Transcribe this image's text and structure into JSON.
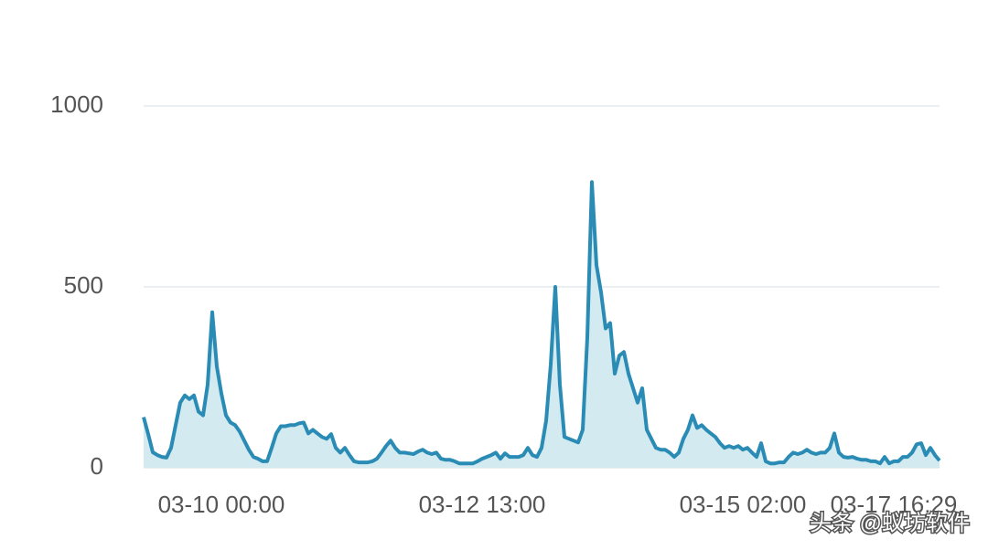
{
  "chart_data": {
    "type": "area",
    "categories": [
      null,
      null,
      null,
      null,
      null,
      null,
      null,
      null,
      null,
      null,
      null,
      null,
      null,
      null,
      null,
      null,
      null,
      "03-10 00:00",
      null,
      null,
      null,
      null,
      null,
      null,
      null,
      null,
      null,
      null,
      null,
      null,
      null,
      null,
      null,
      null,
      null,
      null,
      null,
      null,
      null,
      null,
      null,
      null,
      null,
      null,
      null,
      null,
      null,
      null,
      null,
      null,
      null,
      null,
      null,
      null,
      null,
      null,
      null,
      null,
      null,
      null,
      null,
      null,
      null,
      null,
      null,
      null,
      null,
      null,
      null,
      null,
      null,
      null,
      null,
      null,
      "03-12 13:00",
      null,
      null,
      null,
      null,
      null,
      null,
      null,
      null,
      null,
      null,
      null,
      null,
      null,
      null,
      null,
      null,
      null,
      null,
      null,
      null,
      null,
      null,
      null,
      null,
      null,
      null,
      null,
      null,
      null,
      null,
      null,
      null,
      null,
      null,
      null,
      null,
      null,
      null,
      null,
      null,
      null,
      null,
      null,
      null,
      null,
      null,
      null,
      null,
      null,
      null,
      null,
      null,
      null,
      null,
      null,
      null,
      "03-15 02:00",
      null,
      null,
      null,
      null,
      null,
      null,
      null,
      null,
      null,
      null,
      null,
      null,
      null,
      null,
      null,
      null,
      null,
      null,
      null,
      null,
      null,
      null,
      null,
      null,
      null,
      null,
      null,
      null,
      null,
      null,
      null,
      null,
      "03-17 16:29",
      null,
      null,
      null,
      null,
      null,
      null,
      null,
      null,
      null,
      null
    ],
    "values": [
      140,
      93,
      43,
      35,
      30,
      28,
      55,
      118,
      180,
      200,
      190,
      200,
      155,
      145,
      230,
      430,
      280,
      205,
      145,
      125,
      118,
      100,
      75,
      50,
      30,
      25,
      18,
      18,
      55,
      95,
      115,
      115,
      118,
      118,
      123,
      125,
      95,
      105,
      95,
      85,
      80,
      93,
      55,
      42,
      55,
      35,
      18,
      15,
      15,
      15,
      18,
      25,
      42,
      60,
      75,
      55,
      42,
      42,
      40,
      38,
      45,
      50,
      42,
      38,
      42,
      25,
      22,
      22,
      18,
      12,
      12,
      12,
      12,
      18,
      25,
      30,
      35,
      42,
      25,
      40,
      30,
      30,
      30,
      35,
      55,
      35,
      30,
      55,
      130,
      285,
      500,
      230,
      85,
      80,
      75,
      70,
      105,
      360,
      790,
      560,
      485,
      385,
      400,
      260,
      310,
      320,
      260,
      220,
      180,
      220,
      105,
      80,
      55,
      50,
      50,
      42,
      30,
      42,
      80,
      105,
      145,
      110,
      118,
      105,
      95,
      85,
      68,
      55,
      60,
      55,
      60,
      50,
      55,
      42,
      30,
      68,
      18,
      12,
      12,
      15,
      15,
      30,
      42,
      38,
      42,
      50,
      42,
      38,
      42,
      42,
      55,
      95,
      42,
      30,
      28,
      30,
      25,
      22,
      22,
      18,
      18,
      12,
      30,
      12,
      18,
      18,
      30,
      30,
      42,
      65,
      68,
      35,
      55,
      35,
      20
    ],
    "color": "#2a8cb5",
    "fill": "#d3eaf1",
    "ylim": [
      0,
      1000
    ],
    "yticks": [
      0,
      500,
      1000
    ],
    "grid": true,
    "watermark": "头条 @蚁坊软件"
  }
}
